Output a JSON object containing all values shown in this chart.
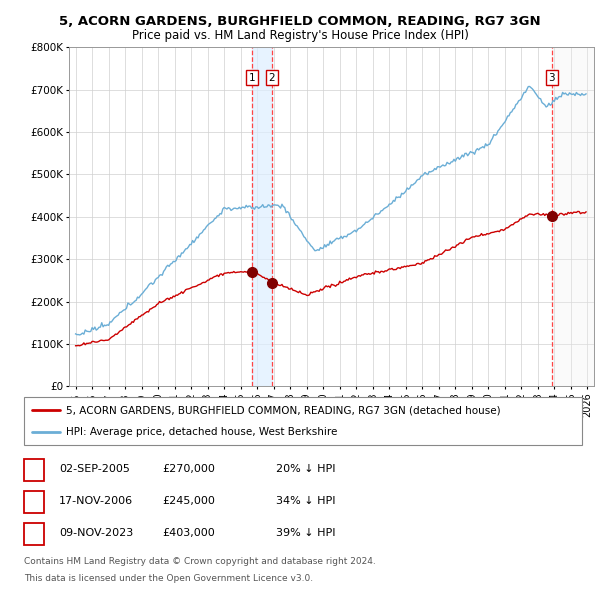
{
  "title1": "5, ACORN GARDENS, BURGHFIELD COMMON, READING, RG7 3GN",
  "title2": "Price paid vs. HM Land Registry's House Price Index (HPI)",
  "ylim": [
    0,
    800000
  ],
  "yticks": [
    0,
    100000,
    200000,
    300000,
    400000,
    500000,
    600000,
    700000,
    800000
  ],
  "ytick_labels": [
    "£0",
    "£100K",
    "£200K",
    "£300K",
    "£400K",
    "£500K",
    "£600K",
    "£700K",
    "£800K"
  ],
  "xlim_left": 1994.6,
  "xlim_right": 2026.4,
  "hpi_color": "#6baed6",
  "price_color": "#cc0000",
  "sale_marker_color": "#800000",
  "vline_color": "#ff4444",
  "shade_color": "#ddeeff",
  "hatch_color": "#cccccc",
  "transaction_dates": [
    2005.67,
    2006.88,
    2023.85
  ],
  "transaction_prices": [
    270000,
    245000,
    403000
  ],
  "transaction_labels": [
    "1",
    "2",
    "3"
  ],
  "legend_label_price": "5, ACORN GARDENS, BURGHFIELD COMMON, READING, RG7 3GN (detached house)",
  "legend_label_hpi": "HPI: Average price, detached house, West Berkshire",
  "footer1": "Contains HM Land Registry data © Crown copyright and database right 2024.",
  "footer2": "This data is licensed under the Open Government Licence v3.0.",
  "table_rows": [
    {
      "label": "1",
      "date": "02-SEP-2005",
      "price": "£270,000",
      "pct": "20% ↓ HPI"
    },
    {
      "label": "2",
      "date": "17-NOV-2006",
      "price": "£245,000",
      "pct": "34% ↓ HPI"
    },
    {
      "label": "3",
      "date": "09-NOV-2023",
      "price": "£403,000",
      "pct": "39% ↓ HPI"
    }
  ]
}
